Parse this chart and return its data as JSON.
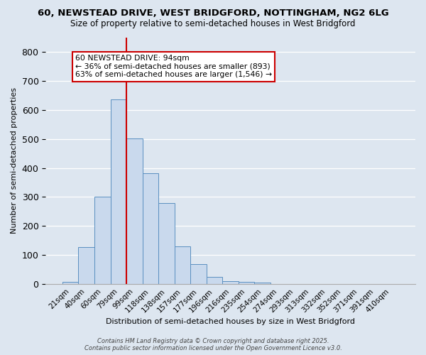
{
  "title_line1": "60, NEWSTEAD DRIVE, WEST BRIDGFORD, NOTTINGHAM, NG2 6LG",
  "title_line2": "Size of property relative to semi-detached houses in West Bridgford",
  "xlabel": "Distribution of semi-detached houses by size in West Bridgford",
  "ylabel": "Number of semi-detached properties",
  "bin_labels": [
    "21sqm",
    "40sqm",
    "60sqm",
    "79sqm",
    "99sqm",
    "118sqm",
    "138sqm",
    "157sqm",
    "177sqm",
    "196sqm",
    "216sqm",
    "235sqm",
    "254sqm",
    "274sqm",
    "293sqm",
    "313sqm",
    "332sqm",
    "352sqm",
    "371sqm",
    "391sqm",
    "410sqm"
  ],
  "bar_values": [
    8,
    128,
    302,
    635,
    502,
    383,
    278,
    130,
    70,
    26,
    10,
    7,
    5,
    0,
    0,
    0,
    0,
    0,
    0,
    0,
    0
  ],
  "bar_color": "#c9d9ed",
  "bar_edge_color": "#5a8fc0",
  "vline_x": 3.5,
  "vline_color": "#cc0000",
  "ylim": [
    0,
    850
  ],
  "yticks": [
    0,
    100,
    200,
    300,
    400,
    500,
    600,
    700,
    800
  ],
  "annotation_title": "60 NEWSTEAD DRIVE: 94sqm",
  "annotation_line2": "← 36% of semi-detached houses are smaller (893)",
  "annotation_line3": "63% of semi-detached houses are larger (1,546) →",
  "annotation_box_facecolor": "#ffffff",
  "annotation_box_edgecolor": "#cc0000",
  "footer_line1": "Contains HM Land Registry data © Crown copyright and database right 2025.",
  "footer_line2": "Contains public sector information licensed under the Open Government Licence v3.0.",
  "background_color": "#dde6f0",
  "plot_bg_color": "#dde6f0"
}
